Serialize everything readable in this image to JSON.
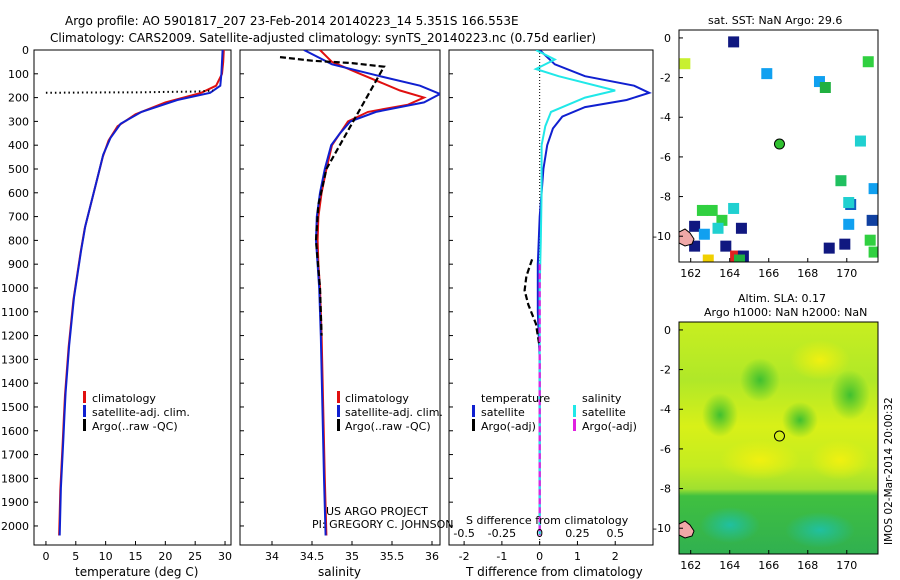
{
  "header": {
    "title_line1": "Argo profile: AO 5901817_207 23-Feb-2014 20140223_14 5.351S 166.553E",
    "title_line2": "Climatology: CARS2009. Satellite-adjusted climatology: synTS_20140223.nc (0.75d earlier)"
  },
  "colors": {
    "climatology": "#e01010",
    "satellite": "#1020d0",
    "argo": "#000000",
    "sat_salinity": "#20e8e8",
    "argo_salinity": "#e020e0"
  },
  "depth_axis": {
    "ticks": [
      "0",
      "100",
      "200",
      "300",
      "400",
      "500",
      "600",
      "700",
      "800",
      "900",
      "1000",
      "1100",
      "1200",
      "1300",
      "1400",
      "1500",
      "1600",
      "1700",
      "1800",
      "1900",
      "2000"
    ],
    "range": [
      0,
      2080
    ]
  },
  "chart_data": [
    {
      "id": "temperature",
      "type": "line",
      "xlabel": "temperature (deg C)",
      "xlim": [
        -2,
        31
      ],
      "xticks": [
        "0",
        "5",
        "10",
        "15",
        "20",
        "25",
        "30"
      ],
      "xtick_values": [
        0,
        5,
        10,
        15,
        20,
        25,
        30
      ],
      "series": [
        {
          "name": "climatology",
          "color": "#e01010",
          "style": "solid",
          "points": [
            [
              29.8,
              0
            ],
            [
              29.7,
              50
            ],
            [
              29.5,
              100
            ],
            [
              28.5,
              150
            ],
            [
              26,
              180
            ],
            [
              20,
              220
            ],
            [
              15,
              270
            ],
            [
              12,
              320
            ],
            [
              10.5,
              380
            ],
            [
              9.5,
              450
            ],
            [
              8.5,
              550
            ],
            [
              7.5,
              650
            ],
            [
              6.5,
              750
            ],
            [
              5.8,
              850
            ],
            [
              5.2,
              950
            ],
            [
              4.6,
              1050
            ],
            [
              4.2,
              1150
            ],
            [
              3.8,
              1250
            ],
            [
              3.5,
              1350
            ],
            [
              3.2,
              1450
            ],
            [
              3,
              1550
            ],
            [
              2.8,
              1650
            ],
            [
              2.6,
              1750
            ],
            [
              2.4,
              1850
            ],
            [
              2.3,
              1950
            ],
            [
              2.2,
              2040
            ]
          ]
        },
        {
          "name": "satellite-adj. clim.",
          "color": "#1020d0",
          "style": "solid",
          "points": [
            [
              29.6,
              0
            ],
            [
              29.5,
              50
            ],
            [
              29.4,
              100
            ],
            [
              29.2,
              150
            ],
            [
              27.5,
              180
            ],
            [
              22,
              210
            ],
            [
              16,
              260
            ],
            [
              12.5,
              310
            ],
            [
              10.8,
              370
            ],
            [
              9.6,
              440
            ],
            [
              8.6,
              540
            ],
            [
              7.6,
              640
            ],
            [
              6.6,
              740
            ],
            [
              5.9,
              840
            ],
            [
              5.3,
              940
            ],
            [
              4.7,
              1040
            ],
            [
              4.3,
              1140
            ],
            [
              3.9,
              1240
            ],
            [
              3.6,
              1340
            ],
            [
              3.3,
              1440
            ],
            [
              3.1,
              1540
            ],
            [
              2.9,
              1640
            ],
            [
              2.7,
              1740
            ],
            [
              2.5,
              1840
            ],
            [
              2.4,
              1940
            ],
            [
              2.3,
              2040
            ]
          ]
        },
        {
          "name": "Argo(..raw -QC)",
          "color": "#000000",
          "style": "dotted",
          "points": [
            [
              0,
              180
            ],
            [
              5,
              179
            ],
            [
              10,
              178
            ],
            [
              15,
              178
            ],
            [
              20,
              176
            ],
            [
              25,
              175
            ],
            [
              28,
              170
            ]
          ]
        }
      ],
      "legend": [
        {
          "label": "climatology",
          "color": "#e01010"
        },
        {
          "label": "satellite-adj. clim.",
          "color": "#1020d0"
        },
        {
          "label": "Argo(..raw -QC)",
          "color": "#000000"
        }
      ]
    },
    {
      "id": "salinity",
      "type": "line",
      "xlabel": "salinity",
      "xlim": [
        33.6,
        36.1
      ],
      "xticks": [
        "34",
        "34.5",
        "35",
        "35.5",
        "36"
      ],
      "xtick_values": [
        34,
        34.5,
        35,
        35.5,
        36
      ],
      "series": [
        {
          "name": "climatology",
          "color": "#e01010",
          "style": "solid",
          "points": [
            [
              34.6,
              0
            ],
            [
              34.75,
              50
            ],
            [
              35.1,
              100
            ],
            [
              35.6,
              170
            ],
            [
              35.9,
              200
            ],
            [
              35.7,
              230
            ],
            [
              35.2,
              260
            ],
            [
              34.95,
              300
            ],
            [
              34.85,
              350
            ],
            [
              34.75,
              400
            ],
            [
              34.68,
              500
            ],
            [
              34.62,
              600
            ],
            [
              34.58,
              700
            ],
            [
              34.57,
              800
            ],
            [
              34.58,
              900
            ],
            [
              34.6,
              1000
            ],
            [
              34.62,
              1200
            ],
            [
              34.64,
              1500
            ],
            [
              34.66,
              1800
            ],
            [
              34.68,
              2040
            ]
          ]
        },
        {
          "name": "satellite-adj. clim.",
          "color": "#1020d0",
          "style": "solid",
          "points": [
            [
              34.4,
              0
            ],
            [
              34.75,
              60
            ],
            [
              35.35,
              110
            ],
            [
              35.85,
              150
            ],
            [
              36.1,
              185
            ],
            [
              35.9,
              220
            ],
            [
              35.3,
              260
            ],
            [
              34.98,
              300
            ],
            [
              34.85,
              350
            ],
            [
              34.74,
              400
            ],
            [
              34.66,
              500
            ],
            [
              34.6,
              600
            ],
            [
              34.56,
              700
            ],
            [
              34.55,
              800
            ],
            [
              34.57,
              900
            ],
            [
              34.59,
              1000
            ],
            [
              34.61,
              1200
            ],
            [
              34.63,
              1500
            ],
            [
              34.65,
              1800
            ],
            [
              34.67,
              2040
            ]
          ]
        },
        {
          "name": "Argo(..raw -QC)",
          "color": "#000000",
          "style": "dashed",
          "points": [
            [
              34.1,
              30
            ],
            [
              34.5,
              45
            ],
            [
              35.0,
              55
            ],
            [
              35.4,
              70
            ],
            [
              34.68,
              500
            ],
            [
              34.58,
              650
            ],
            [
              34.55,
              800
            ],
            [
              34.6,
              1000
            ],
            [
              34.62,
              1200
            ]
          ]
        }
      ],
      "legend": [
        {
          "label": "climatology",
          "color": "#e01010"
        },
        {
          "label": "satellite-adj. clim.",
          "color": "#1020d0"
        },
        {
          "label": "Argo(..raw -QC)",
          "color": "#000000"
        }
      ],
      "annotation_line1": "US ARGO PROJECT",
      "annotation_line2": "PI: GREGORY C. JOHNSON"
    },
    {
      "id": "difference",
      "type": "line",
      "xlabel": "T difference from climatology",
      "xlabel_top": "S difference from climatology",
      "xlim": [
        -2.4,
        3
      ],
      "xticks": [
        "-2",
        "-1",
        "0",
        "1",
        "2"
      ],
      "xtick_values": [
        -2,
        -1,
        0,
        1,
        2
      ],
      "top_ticks": [
        "-0.5",
        "-0.25",
        "0",
        "0.25",
        "0.5"
      ],
      "series": [
        {
          "name": "temperature satellite",
          "color": "#1020d0",
          "style": "solid",
          "points": [
            [
              0,
              0
            ],
            [
              0.4,
              60
            ],
            [
              1.2,
              110
            ],
            [
              2.5,
              150
            ],
            [
              2.9,
              180
            ],
            [
              2.3,
              210
            ],
            [
              1.2,
              240
            ],
            [
              0.6,
              280
            ],
            [
              0.35,
              330
            ],
            [
              0.2,
              400
            ],
            [
              0.1,
              500
            ],
            [
              0.05,
              600
            ],
            [
              0,
              700
            ],
            [
              -0.05,
              900
            ],
            [
              -0.05,
              1100
            ],
            [
              0,
              1300
            ],
            [
              0,
              2040
            ]
          ]
        },
        {
          "name": "salinity satellite",
          "color": "#20e8e8",
          "style": "solid",
          "points": [
            [
              -0.1,
              0
            ],
            [
              0.4,
              40
            ],
            [
              -0.1,
              80
            ],
            [
              0.5,
              110
            ],
            [
              2,
              170
            ],
            [
              1.2,
              200
            ],
            [
              0.3,
              260
            ],
            [
              0.15,
              320
            ],
            [
              0.05,
              400
            ],
            [
              0.05,
              600
            ],
            [
              0.03,
              800
            ],
            [
              0,
              1000
            ],
            [
              0,
              2040
            ]
          ]
        },
        {
          "name": "temperature Argo(-adj)",
          "color": "#000000",
          "style": "dashed",
          "points": [
            [
              -0.2,
              880
            ],
            [
              -0.35,
              950
            ],
            [
              -0.4,
              1010
            ],
            [
              -0.3,
              1070
            ],
            [
              -0.1,
              1150
            ],
            [
              0,
              1250
            ]
          ]
        },
        {
          "name": "salinity Argo(-adj)",
          "color": "#e020e0",
          "style": "dashed",
          "points": [
            [
              0,
              900
            ],
            [
              0,
              1400
            ],
            [
              0,
              2040
            ]
          ]
        }
      ],
      "legend_left_title": "temperature",
      "legend_right_title": "salinity",
      "legend": [
        {
          "label": "satellite",
          "color": "#1020d0"
        },
        {
          "label": "Argo(-adj)",
          "color": "#000000"
        },
        {
          "label": "satellite",
          "color": "#20e8e8"
        },
        {
          "label": "Argo(-adj)",
          "color": "#e020e0"
        }
      ]
    },
    {
      "id": "sst_map",
      "type": "heatmap",
      "title": "sat. SST: NaN Argo: 29.6",
      "xticks": [
        "162",
        "164",
        "166",
        "168",
        "170"
      ],
      "xtick_values": [
        162,
        164,
        166,
        168,
        170
      ],
      "yticks": [
        "0",
        "-2",
        "-4",
        "-6",
        "-8",
        "-10"
      ],
      "ytick_values": [
        0,
        -2,
        -4,
        -6,
        -8,
        -10
      ],
      "xlim": [
        161.4,
        171.6
      ],
      "ylim": [
        -11.3,
        0.4
      ],
      "profile_location": [
        166.55,
        -5.35
      ],
      "cells": [
        {
          "lon": 164.2,
          "lat": -0.2,
          "color": "#101880"
        },
        {
          "lon": 161.7,
          "lat": -1.3,
          "color": "#c8f030"
        },
        {
          "lon": 165.9,
          "lat": -1.8,
          "color": "#10a0f0"
        },
        {
          "lon": 168.6,
          "lat": -2.2,
          "color": "#10a0f0"
        },
        {
          "lon": 168.9,
          "lat": -2.5,
          "color": "#20b040"
        },
        {
          "lon": 171.1,
          "lat": -1.2,
          "color": "#30d040"
        },
        {
          "lon": 170.7,
          "lat": -5.2,
          "color": "#20d0d0"
        },
        {
          "lon": 169.7,
          "lat": -7.2,
          "color": "#20c060"
        },
        {
          "lon": 171.4,
          "lat": -7.6,
          "color": "#10a0f0"
        },
        {
          "lon": 170.2,
          "lat": -8.4,
          "color": "#1060c0"
        },
        {
          "lon": 170.1,
          "lat": -8.3,
          "color": "#20d0d0"
        },
        {
          "lon": 170.1,
          "lat": -9.4,
          "color": "#10a0f0"
        },
        {
          "lon": 171.3,
          "lat": -9.2,
          "color": "#1040a0"
        },
        {
          "lon": 171.2,
          "lat": -10.2,
          "color": "#30d040"
        },
        {
          "lon": 169.9,
          "lat": -10.4,
          "color": "#101880"
        },
        {
          "lon": 169.1,
          "lat": -10.6,
          "color": "#101880"
        },
        {
          "lon": 164.2,
          "lat": -8.6,
          "color": "#20d0d0"
        },
        {
          "lon": 162.6,
          "lat": -8.7,
          "color": "#30d040"
        },
        {
          "lon": 163.1,
          "lat": -8.7,
          "color": "#30d040"
        },
        {
          "lon": 163.6,
          "lat": -9.2,
          "color": "#30d040"
        },
        {
          "lon": 162.2,
          "lat": -9.5,
          "color": "#101880"
        },
        {
          "lon": 162.7,
          "lat": -9.9,
          "color": "#10a0f0"
        },
        {
          "lon": 163.4,
          "lat": -9.6,
          "color": "#20d0d0"
        },
        {
          "lon": 164.6,
          "lat": -9.6,
          "color": "#101880"
        },
        {
          "lon": 162.2,
          "lat": -10.5,
          "color": "#101880"
        },
        {
          "lon": 163.8,
          "lat": -10.5,
          "color": "#101880"
        },
        {
          "lon": 164.3,
          "lat": -11.0,
          "color": "#e02020"
        },
        {
          "lon": 164.7,
          "lat": -11.0,
          "color": "#101880"
        },
        {
          "lon": 164.5,
          "lat": -11.2,
          "color": "#20b040"
        },
        {
          "lon": 162.9,
          "lat": -11.2,
          "color": "#f0d000"
        },
        {
          "lon": 171.4,
          "lat": -10.8,
          "color": "#30d040"
        }
      ]
    },
    {
      "id": "sla_map",
      "type": "heatmap",
      "title_line1": "Altim. SLA: 0.17",
      "title_line2": "Argo h1000: NaN h2000: NaN",
      "xticks": [
        "162",
        "164",
        "166",
        "168",
        "170"
      ],
      "xtick_values": [
        162,
        164,
        166,
        168,
        170
      ],
      "yticks": [
        "0",
        "-2",
        "-4",
        "-6",
        "-8",
        "-10"
      ],
      "ytick_values": [
        0,
        -2,
        -4,
        -6,
        -8,
        -10
      ],
      "xlim": [
        161.4,
        171.6
      ],
      "ylim": [
        -11.3,
        0.4
      ],
      "profile_location": [
        166.55,
        -5.35
      ],
      "side_label": "IMOS 02-Mar-2014 20:00:32"
    }
  ]
}
